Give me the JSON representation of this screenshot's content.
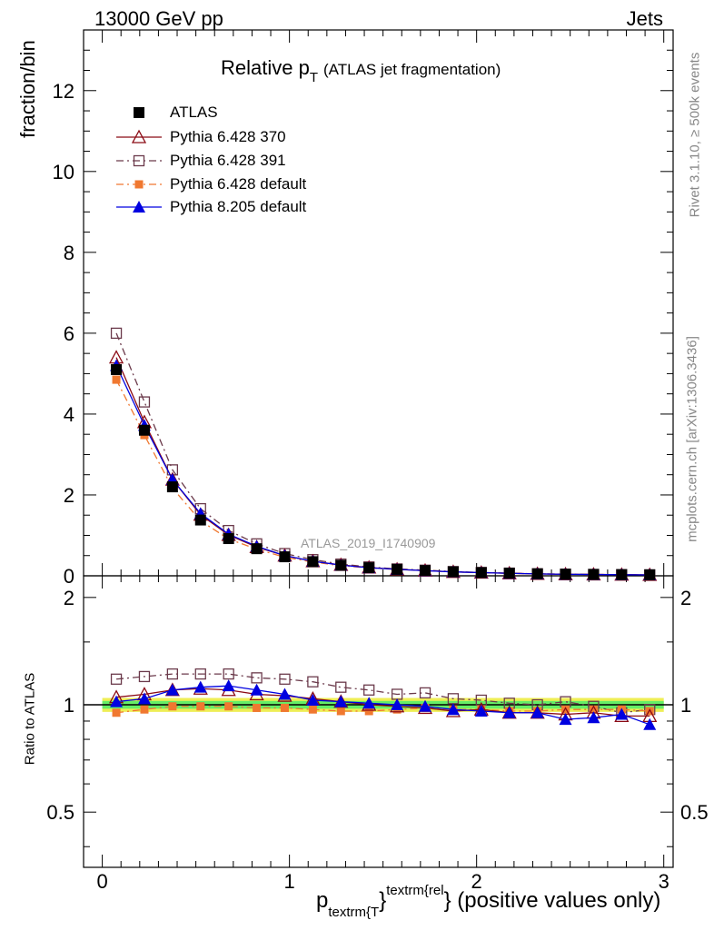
{
  "header": {
    "left": "13000 GeV pp",
    "right": "Jets"
  },
  "title": {
    "main": "Relative p",
    "sub": "T",
    "paren": "(ATLAS jet fragmentation)"
  },
  "ylabel_main": "fraction/bin",
  "ylabel_ratio": "Ratio to ATLAS",
  "side_texts": {
    "rivet": "Rivet 3.1.10, ≥ 500k events",
    "mcplots": "mcplots.cern.ch [arXiv:1306.3436]"
  },
  "analysis_id": "ATLAS_2019_I1740909",
  "xlabel": {
    "p": "p",
    "sub": "textrm{T",
    "brace": "}",
    "sup": "textrm{rel",
    "close": "}",
    "rest": " (positive values only)"
  },
  "colors": {
    "atlas": "#000000",
    "py370": "#8b0a14",
    "py391": "#6b3a4b",
    "pydefault": "#f07830",
    "py8": "#0000e0",
    "band_green": "#66ee66",
    "band_yellow": "#eeee55"
  },
  "legend": [
    "ATLAS",
    "Pythia 6.428 370",
    "Pythia 6.428 391",
    "Pythia 6.428 default",
    "Pythia 8.205 default"
  ],
  "chart_data": {
    "type": "line",
    "title": "Relative pT (ATLAS jet fragmentation)",
    "xlabel": "p_textrm{T}^textrm{rel} (positive values only)",
    "ylabel": "fraction/bin",
    "xlim": [
      -0.1,
      3.05
    ],
    "ylim": [
      0,
      13.5
    ],
    "ratio_ylim": [
      0.35,
      2.3
    ],
    "x_ticks": [
      "0",
      "1",
      "2",
      "3"
    ],
    "y_ticks": [
      "0",
      "2",
      "4",
      "6",
      "8",
      "10",
      "12"
    ],
    "ratio_ticks": [
      "0.5",
      "1",
      "2"
    ],
    "x": [
      0.075,
      0.225,
      0.375,
      0.525,
      0.675,
      0.825,
      0.975,
      1.125,
      1.275,
      1.425,
      1.575,
      1.725,
      1.875,
      2.025,
      2.175,
      2.325,
      2.475,
      2.625,
      2.775,
      2.925
    ],
    "series": [
      {
        "name": "ATLAS",
        "values": [
          5.1,
          3.6,
          2.2,
          1.38,
          0.92,
          0.67,
          0.47,
          0.35,
          0.26,
          0.2,
          0.16,
          0.13,
          0.1,
          0.08,
          0.065,
          0.05,
          0.04,
          0.035,
          0.03,
          0.025
        ]
      },
      {
        "name": "Pythia 6.428 370",
        "values": [
          5.4,
          3.8,
          2.38,
          1.51,
          1.01,
          0.71,
          0.5,
          0.36,
          0.27,
          0.205,
          0.16,
          0.13,
          0.097,
          0.078,
          0.062,
          0.048,
          0.038,
          0.034,
          0.028,
          0.023
        ],
        "ratio": [
          1.05,
          1.07,
          1.1,
          1.11,
          1.1,
          1.07,
          1.06,
          1.04,
          1.02,
          1.0,
          0.99,
          0.98,
          0.96,
          0.97,
          0.95,
          0.95,
          0.94,
          0.95,
          0.93,
          0.93
        ]
      },
      {
        "name": "Pythia 6.428 391",
        "values": [
          6.0,
          4.3,
          2.62,
          1.66,
          1.12,
          0.79,
          0.55,
          0.4,
          0.29,
          0.22,
          0.17,
          0.14,
          0.105,
          0.083,
          0.066,
          0.05,
          0.041,
          0.034,
          0.028,
          0.024
        ],
        "ratio": [
          1.18,
          1.2,
          1.22,
          1.22,
          1.22,
          1.19,
          1.18,
          1.16,
          1.12,
          1.1,
          1.07,
          1.08,
          1.04,
          1.03,
          1.01,
          1.0,
          1.02,
          0.99,
          0.95,
          0.97
        ]
      },
      {
        "name": "Pythia 6.428 default",
        "values": [
          4.85,
          3.48,
          2.17,
          1.36,
          0.91,
          0.66,
          0.46,
          0.34,
          0.25,
          0.195,
          0.155,
          0.128,
          0.098,
          0.077,
          0.062,
          0.048,
          0.039,
          0.034,
          0.029,
          0.024
        ],
        "ratio": [
          0.95,
          0.97,
          0.99,
          0.99,
          0.99,
          0.98,
          0.98,
          0.97,
          0.96,
          0.96,
          0.97,
          0.98,
          0.97,
          0.97,
          0.96,
          0.96,
          0.97,
          0.97,
          0.97,
          0.96
        ]
      },
      {
        "name": "Pythia 8.205 default",
        "values": [
          5.2,
          3.72,
          2.38,
          1.54,
          1.03,
          0.73,
          0.5,
          0.36,
          0.265,
          0.2,
          0.16,
          0.127,
          0.097,
          0.078,
          0.061,
          0.047,
          0.037,
          0.032,
          0.027,
          0.022
        ],
        "ratio": [
          1.02,
          1.04,
          1.1,
          1.12,
          1.13,
          1.1,
          1.07,
          1.03,
          1.02,
          1.01,
          1.0,
          0.99,
          0.97,
          0.96,
          0.95,
          0.95,
          0.91,
          0.92,
          0.94,
          0.88
        ]
      }
    ]
  }
}
